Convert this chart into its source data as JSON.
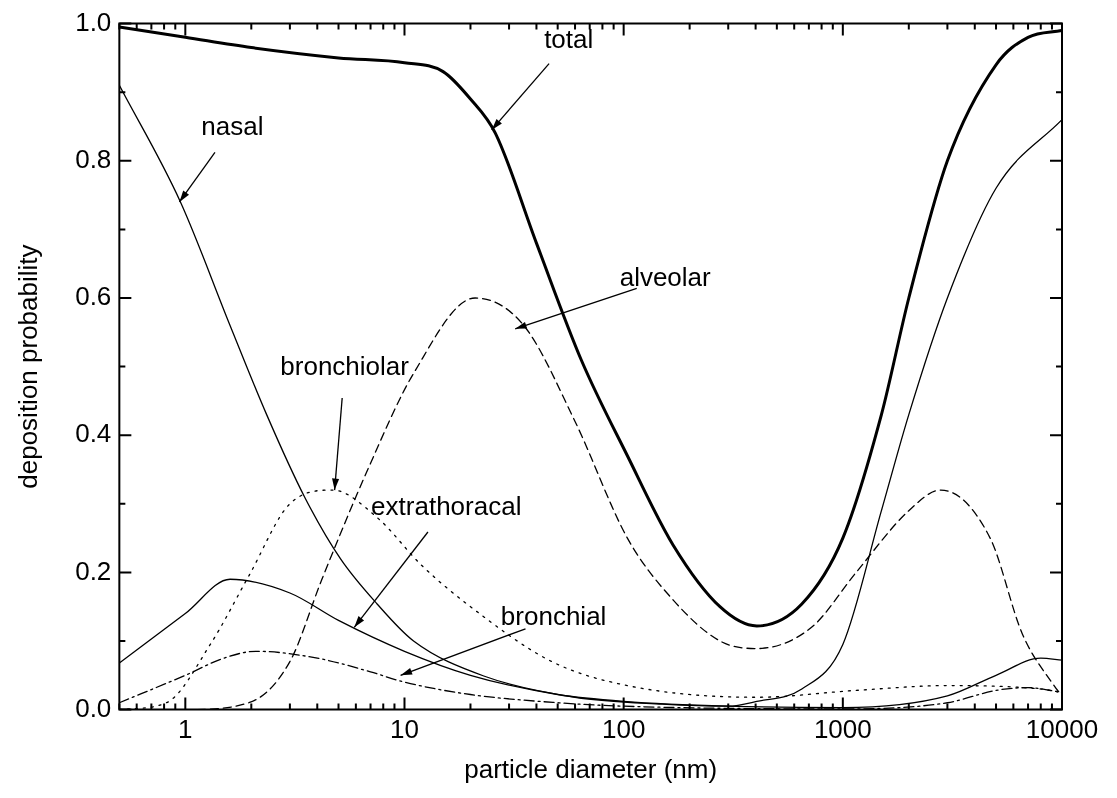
{
  "chart_data": {
    "type": "line",
    "xlabel": "particle diameter (nm)",
    "ylabel": "deposition probability",
    "log": "x",
    "grid": false,
    "legend": false,
    "marker": "none",
    "xlim": [
      0.5,
      10000
    ],
    "ylim": [
      0,
      1
    ],
    "xticks": [
      {
        "value": 0.5,
        "label": null
      },
      {
        "value": 0.6,
        "label": null
      },
      {
        "value": 0.7,
        "label": null
      },
      {
        "value": 0.8,
        "label": null
      },
      {
        "value": 0.9,
        "label": null
      },
      1,
      {
        "value": 2,
        "label": null
      },
      {
        "value": 3,
        "label": null
      },
      {
        "value": 4,
        "label": null
      },
      {
        "value": 5,
        "label": null
      },
      {
        "value": 6,
        "label": null
      },
      {
        "value": 7,
        "label": null
      },
      {
        "value": 8,
        "label": null
      },
      {
        "value": 9,
        "label": null
      },
      10,
      {
        "value": 20,
        "label": null
      },
      {
        "value": 30,
        "label": null
      },
      {
        "value": 40,
        "label": null
      },
      {
        "value": 50,
        "label": null
      },
      {
        "value": 60,
        "label": null
      },
      {
        "value": 70,
        "label": null
      },
      {
        "value": 80,
        "label": null
      },
      {
        "value": 90,
        "label": null
      },
      100,
      {
        "value": 200,
        "label": null
      },
      {
        "value": 300,
        "label": null
      },
      {
        "value": 400,
        "label": null
      },
      {
        "value": 500,
        "label": null
      },
      {
        "value": 600,
        "label": null
      },
      {
        "value": 700,
        "label": null
      },
      {
        "value": 800,
        "label": null
      },
      {
        "value": 900,
        "label": null
      },
      1000,
      {
        "value": 2000,
        "label": null
      },
      {
        "value": 3000,
        "label": null
      },
      {
        "value": 4000,
        "label": null
      },
      {
        "value": 5000,
        "label": null
      },
      {
        "value": 6000,
        "label": null
      },
      {
        "value": 7000,
        "label": null
      },
      {
        "value": 8000,
        "label": null
      },
      {
        "value": 9000,
        "label": null
      },
      10000
    ],
    "yticks": [
      {
        "value": 0,
        "label": "0.0"
      },
      {
        "value": 0.1,
        "label": null
      },
      {
        "value": 0.2,
        "label": "0.2"
      },
      {
        "value": 0.3,
        "label": null
      },
      {
        "value": 0.4,
        "label": "0.4"
      },
      {
        "value": 0.5,
        "label": null
      },
      {
        "value": 0.6,
        "label": "0.6"
      },
      {
        "value": 0.7,
        "label": null
      },
      {
        "value": 0.8,
        "label": "0.8"
      },
      {
        "value": 0.9,
        "label": null
      },
      {
        "value": 1,
        "label": "1.0"
      }
    ],
    "series": [
      {
        "color": "#000000",
        "line_style": "solid",
        "x": [
          0.5,
          1,
          2,
          5,
          10,
          15,
          20,
          26,
          40,
          64,
          104,
          168,
          275,
          405,
          650,
          1000,
          1500,
          2000,
          3000,
          5000,
          7000,
          10000
        ],
        "values": [
          0.995,
          0.98,
          0.965,
          0.95,
          0.943,
          0.93,
          0.89,
          0.84,
          0.68,
          0.51,
          0.37,
          0.24,
          0.15,
          0.122,
          0.154,
          0.25,
          0.43,
          0.6,
          0.8,
          0.94,
          0.98,
          0.99
        ]
      },
      {
        "color": "#000000",
        "line_style": "solid",
        "x": [
          0.5,
          0.95,
          1.6,
          2.35,
          3.5,
          5.1,
          7.5,
          11,
          23,
          60,
          150,
          300,
          405,
          650,
          1000,
          1500,
          2000,
          3000,
          5000,
          10000
        ],
        "values": [
          0.91,
          0.74,
          0.56,
          0.43,
          0.31,
          0.22,
          0.154,
          0.1,
          0.049,
          0.018,
          0.008,
          0.005,
          0.012,
          0.03,
          0.095,
          0.29,
          0.43,
          0.6,
          0.76,
          0.86
        ]
      },
      {
        "color": "#000000",
        "line_style": "solid",
        "x": [
          0.5,
          1,
          1.6,
          3,
          5,
          10,
          20,
          50,
          100,
          300,
          1000,
          3000,
          5000,
          8000,
          10000
        ],
        "values": [
          0.068,
          0.14,
          0.19,
          0.17,
          0.13,
          0.085,
          0.05,
          0.022,
          0.012,
          0.005,
          0.003,
          0.02,
          0.05,
          0.075,
          0.072
        ]
      },
      {
        "color": "#000000",
        "line_style": "dashed",
        "x": [
          0.5,
          1,
          1.95,
          3,
          4.2,
          6.8,
          11,
          21,
          35,
          60,
          104,
          168,
          275,
          405,
          720,
          1150,
          2000,
          2800,
          4700,
          6600,
          9200,
          10000
        ],
        "values": [
          0,
          0,
          0.01,
          0.07,
          0.19,
          0.35,
          0.49,
          0.6,
          0.56,
          0.42,
          0.25,
          0.16,
          0.1,
          0.089,
          0.12,
          0.2,
          0.29,
          0.32,
          0.25,
          0.11,
          0.035,
          0.02
        ]
      },
      {
        "color": "#000000",
        "line_style": "dotted",
        "x": [
          0.5,
          0.82,
          1.3,
          1.95,
          3,
          4.7,
          7.5,
          12,
          20,
          47,
          104,
          405,
          1150,
          3000,
          8000,
          10000
        ],
        "values": [
          0,
          0.01,
          0.095,
          0.195,
          0.3,
          0.32,
          0.28,
          0.21,
          0.15,
          0.07,
          0.035,
          0.018,
          0.028,
          0.035,
          0.03,
          0.025
        ]
      },
      {
        "color": "#000000",
        "line_style": "dashdot",
        "x": [
          0.5,
          1,
          1.5,
          2.1,
          4,
          7,
          10,
          20,
          50,
          100,
          1000,
          3000,
          5000,
          7000,
          10000
        ],
        "values": [
          0.01,
          0.05,
          0.075,
          0.085,
          0.075,
          0.055,
          0.04,
          0.022,
          0.01,
          0.005,
          0.001,
          0.01,
          0.028,
          0.032,
          0.025
        ]
      }
    ],
    "annotations": [
      {
        "text": "total",
        "x": 25,
        "y": 0.845
      },
      {
        "text": "nasal",
        "x": 0.94,
        "y": 0.74
      },
      {
        "text": "alveolar",
        "x": 32,
        "y": 0.555
      },
      {
        "text": "bronchiolar",
        "x": 4.8,
        "y": 0.32
      },
      {
        "text": "extrathoracal",
        "x": 5.9,
        "y": 0.12
      },
      {
        "text": "bronchial",
        "x": 9.6,
        "y": 0.05
      }
    ]
  }
}
